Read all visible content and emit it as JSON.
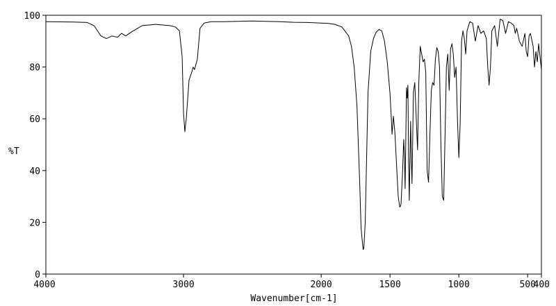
{
  "chart_data": {
    "type": "line",
    "title": "",
    "xlabel": "Wavenumber[cm-1]",
    "ylabel": "%T",
    "xlim": [
      4000,
      400
    ],
    "ylim": [
      0,
      100
    ],
    "x_reversed": true,
    "grid": false,
    "x_ticks": [
      {
        "value": 4000,
        "label": "4000"
      },
      {
        "value": 3000,
        "label": "3000"
      },
      {
        "value": 2000,
        "label": "2000"
      },
      {
        "value": 1500,
        "label": "1500"
      },
      {
        "value": 1000,
        "label": "1000"
      },
      {
        "value": 500,
        "label": "500"
      },
      {
        "value": 400,
        "label": "400"
      }
    ],
    "y_ticks": [
      {
        "value": 0,
        "label": "0"
      },
      {
        "value": 20,
        "label": "20"
      },
      {
        "value": 40,
        "label": "40"
      },
      {
        "value": 60,
        "label": "60"
      },
      {
        "value": 80,
        "label": "80"
      },
      {
        "value": 100,
        "label": "100"
      }
    ],
    "series": [
      {
        "color": "#000000",
        "x": [
          4000,
          3800,
          3700,
          3650,
          3600,
          3560,
          3520,
          3480,
          3450,
          3420,
          3380,
          3300,
          3200,
          3100,
          3060,
          3030,
          3010,
          3000,
          2990,
          2980,
          2960,
          2940,
          2930,
          2920,
          2900,
          2880,
          2850,
          2800,
          2700,
          2500,
          2300,
          2200,
          2100,
          2000,
          1950,
          1900,
          1850,
          1800,
          1780,
          1760,
          1740,
          1730,
          1720,
          1710,
          1700,
          1695,
          1690,
          1680,
          1670,
          1660,
          1640,
          1620,
          1600,
          1580,
          1560,
          1540,
          1520,
          1500,
          1490,
          1485,
          1475,
          1470,
          1465,
          1460,
          1450,
          1440,
          1430,
          1425,
          1420,
          1410,
          1400,
          1395,
          1390,
          1380,
          1375,
          1370,
          1365,
          1360,
          1350,
          1345,
          1340,
          1335,
          1330,
          1320,
          1300,
          1290,
          1280,
          1270,
          1260,
          1250,
          1240,
          1230,
          1220,
          1210,
          1200,
          1190,
          1180,
          1170,
          1160,
          1150,
          1140,
          1130,
          1120,
          1110,
          1100,
          1090,
          1080,
          1070,
          1060,
          1050,
          1040,
          1030,
          1020,
          1010,
          1000,
          990,
          980,
          970,
          960,
          950,
          940,
          920,
          900,
          880,
          860,
          840,
          820,
          800,
          790,
          780,
          770,
          760,
          740,
          720,
          700,
          680,
          660,
          640,
          620,
          600,
          590,
          580,
          560,
          540,
          520,
          510,
          500,
          490,
          480,
          460,
          450,
          440,
          430,
          420,
          410,
          400
        ],
        "y": [
          97.5,
          97.4,
          97.2,
          96.0,
          92.0,
          91.0,
          92.0,
          91.5,
          93.0,
          92.0,
          93.5,
          96.0,
          96.5,
          96.0,
          95.5,
          94.0,
          84.0,
          62.0,
          55.0,
          60.0,
          75.0,
          78.0,
          80.0,
          79.0,
          83.0,
          95.0,
          97.0,
          97.5,
          97.5,
          97.8,
          97.5,
          97.3,
          97.2,
          97.0,
          96.9,
          96.5,
          95.5,
          92.0,
          88.0,
          80.0,
          65.0,
          50.0,
          35.0,
          18.0,
          12.0,
          9.5,
          10.0,
          20.0,
          45.0,
          70.0,
          86.0,
          91.0,
          93.5,
          94.5,
          94.0,
          90.0,
          82.0,
          70.0,
          60.0,
          54.0,
          61.0,
          58.0,
          55.0,
          50.0,
          40.0,
          30.0,
          26.0,
          26.0,
          27.0,
          38.0,
          52.0,
          46.0,
          33.0,
          72.0,
          68.0,
          73.0,
          44.0,
          28.5,
          59.0,
          45.0,
          35.0,
          52.0,
          70.0,
          74.0,
          48.0,
          75.0,
          88.0,
          85.0,
          82.0,
          83.0,
          78.0,
          40.0,
          35.5,
          54.0,
          71.0,
          74.0,
          73.0,
          83.0,
          87.5,
          86.0,
          80.0,
          50.0,
          30.0,
          28.5,
          54.0,
          80.0,
          85.0,
          71.0,
          87.0,
          89.0,
          85.0,
          76.0,
          80.0,
          60.0,
          45.0,
          58.0,
          90.0,
          94.0,
          91.0,
          85.0,
          94.0,
          97.5,
          97.0,
          90.0,
          96.0,
          93.0,
          94.0,
          91.0,
          80.0,
          73.0,
          80.0,
          94.0,
          96.0,
          88.0,
          98.5,
          98.0,
          93.0,
          97.5,
          97.0,
          96.0,
          93.0,
          95.0,
          90.0,
          88.0,
          93.0,
          86.0,
          84.0,
          92.0,
          93.0,
          88.0,
          80.0,
          86.0,
          82.0,
          89.0,
          84.0,
          79.0
        ]
      }
    ]
  }
}
